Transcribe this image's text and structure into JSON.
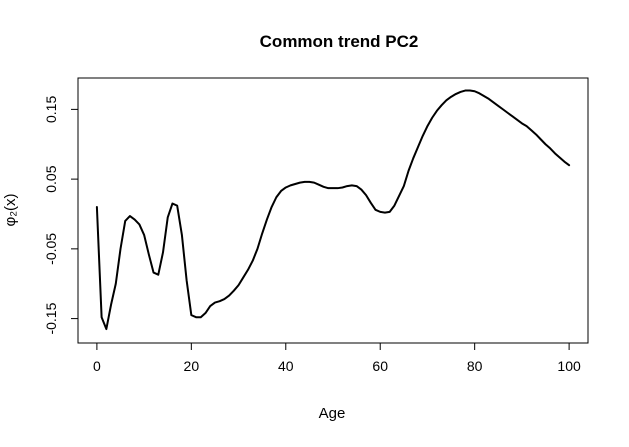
{
  "chart_data": {
    "type": "line",
    "title": "Common trend PC2",
    "xlabel": "Age",
    "ylabel": "φ₂(x)",
    "xlim": [
      -4,
      104
    ],
    "ylim": [
      -0.185,
      0.195
    ],
    "x_ticks": [
      0,
      20,
      40,
      60,
      80,
      100
    ],
    "x_tick_labels": [
      "0",
      "20",
      "40",
      "60",
      "80",
      "100"
    ],
    "y_ticks": [
      -0.15,
      -0.05,
      0.05,
      0.15
    ],
    "y_tick_labels": [
      "-0.15",
      "-0.05",
      "0.05",
      "0.15"
    ],
    "grid": false,
    "legend": "none",
    "line_color": "#000000",
    "series": [
      {
        "x": [
          0,
          1,
          2,
          3,
          4,
          5,
          6,
          7,
          8,
          9,
          10,
          11,
          12,
          13,
          14,
          15,
          16,
          17,
          18,
          19,
          20,
          21,
          22,
          23,
          24,
          25,
          26,
          27,
          28,
          29,
          30,
          31,
          32,
          33,
          34,
          35,
          36,
          37,
          38,
          39,
          40,
          41,
          42,
          43,
          44,
          45,
          46,
          47,
          48,
          49,
          50,
          51,
          52,
          53,
          54,
          55,
          56,
          57,
          58,
          59,
          60,
          61,
          62,
          63,
          64,
          65,
          66,
          67,
          68,
          69,
          70,
          71,
          72,
          73,
          74,
          75,
          76,
          77,
          78,
          79,
          80,
          81,
          82,
          83,
          84,
          85,
          86,
          87,
          88,
          89,
          90,
          91,
          92,
          93,
          94,
          95,
          96,
          97,
          98,
          99,
          100
        ],
        "values": [
          0.01,
          -0.148,
          -0.165,
          -0.13,
          -0.1,
          -0.05,
          -0.01,
          -0.003,
          -0.008,
          -0.015,
          -0.03,
          -0.058,
          -0.084,
          -0.087,
          -0.055,
          -0.005,
          0.015,
          0.012,
          -0.03,
          -0.095,
          -0.145,
          -0.148,
          -0.148,
          -0.142,
          -0.132,
          -0.127,
          -0.125,
          -0.122,
          -0.117,
          -0.11,
          -0.102,
          -0.091,
          -0.08,
          -0.067,
          -0.05,
          -0.028,
          -0.008,
          0.01,
          0.024,
          0.033,
          0.038,
          0.041,
          0.043,
          0.045,
          0.046,
          0.046,
          0.045,
          0.042,
          0.039,
          0.037,
          0.037,
          0.037,
          0.038,
          0.04,
          0.041,
          0.04,
          0.035,
          0.027,
          0.016,
          0.006,
          0.003,
          0.002,
          0.003,
          0.012,
          0.026,
          0.04,
          0.062,
          0.08,
          0.096,
          0.112,
          0.126,
          0.138,
          0.148,
          0.156,
          0.163,
          0.168,
          0.172,
          0.175,
          0.177,
          0.177,
          0.176,
          0.173,
          0.169,
          0.165,
          0.16,
          0.155,
          0.15,
          0.145,
          0.14,
          0.135,
          0.13,
          0.126,
          0.12,
          0.114,
          0.107,
          0.1,
          0.094,
          0.087,
          0.081,
          0.075,
          0.07
        ]
      }
    ]
  }
}
